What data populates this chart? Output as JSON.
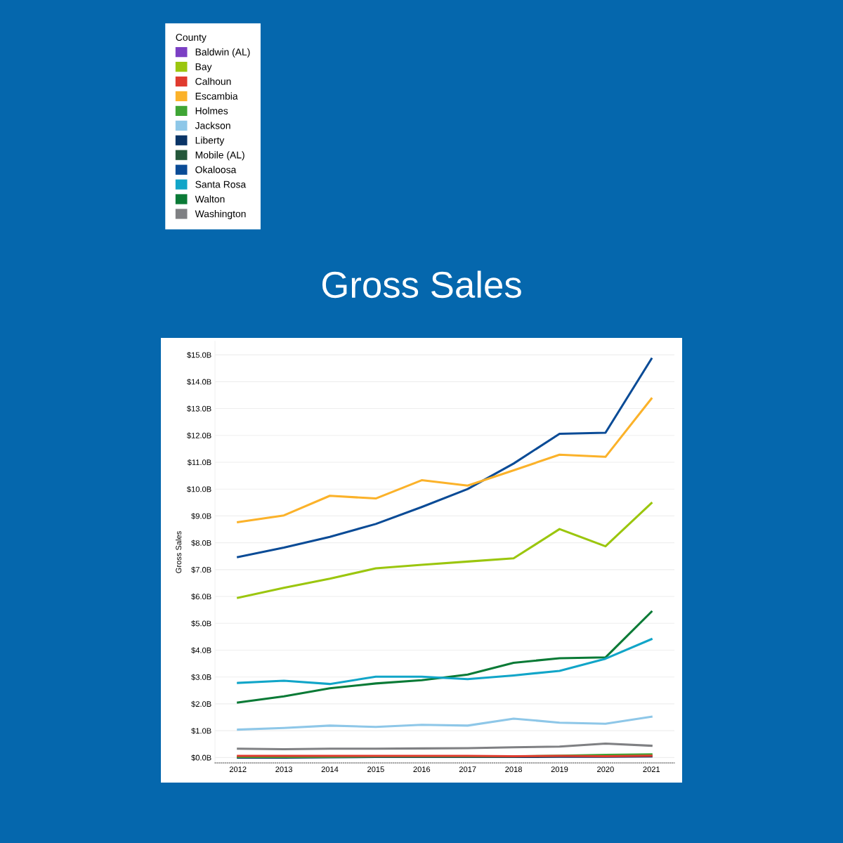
{
  "chart_data": {
    "type": "line",
    "title": "Gross Sales",
    "ylabel": "Gross Sales",
    "legend_title": "County",
    "legend": "top left",
    "grid": "y",
    "line_style": "solid",
    "marker": "none",
    "categories": [
      "2012",
      "2013",
      "2014",
      "2015",
      "2016",
      "2017",
      "2018",
      "2019",
      "2020",
      "2021"
    ],
    "ylim": [
      -0.2,
      15.5
    ],
    "yticks": [
      {
        "value": 0,
        "label": "$0.0B"
      },
      {
        "value": 1,
        "label": "$1.0B"
      },
      {
        "value": 2,
        "label": "$2.0B"
      },
      {
        "value": 3,
        "label": "$3.0B"
      },
      {
        "value": 4,
        "label": "$4.0B"
      },
      {
        "value": 5,
        "label": "$5.0B"
      },
      {
        "value": 6,
        "label": "$6.0B"
      },
      {
        "value": 7,
        "label": "$7.0B"
      },
      {
        "value": 8,
        "label": "$8.0B"
      },
      {
        "value": 9,
        "label": "$9.0B"
      },
      {
        "value": 10,
        "label": "$10.0B"
      },
      {
        "value": 11,
        "label": "$11.0B"
      },
      {
        "value": 12,
        "label": "$12.0B"
      },
      {
        "value": 13,
        "label": "$13.0B"
      },
      {
        "value": 14,
        "label": "$14.0B"
      },
      {
        "value": 15,
        "label": "$15.0B"
      }
    ],
    "series": [
      {
        "name": "Baldwin (AL)",
        "color": "#7b3fc4",
        "values": [
          null,
          null,
          null,
          null,
          null,
          null,
          null,
          null,
          null,
          null
        ]
      },
      {
        "name": "Bay",
        "color": "#9bc60e",
        "values": [
          5.95,
          6.32,
          6.66,
          7.05,
          7.18,
          7.3,
          7.42,
          8.51,
          7.87,
          9.48
        ]
      },
      {
        "name": "Calhoun",
        "color": "#e03a2e",
        "values": [
          0.06,
          0.06,
          0.06,
          0.06,
          0.06,
          0.06,
          0.05,
          0.06,
          0.05,
          0.07
        ]
      },
      {
        "name": "Escambia",
        "color": "#fbb22a",
        "values": [
          8.77,
          9.02,
          9.75,
          9.65,
          10.33,
          10.13,
          10.7,
          11.28,
          11.2,
          13.37
        ]
      },
      {
        "name": "Holmes",
        "color": "#3fa535",
        "values": [
          0.02,
          0.02,
          0.03,
          0.04,
          0.04,
          0.04,
          0.04,
          0.07,
          0.1,
          0.12
        ]
      },
      {
        "name": "Jackson",
        "color": "#8ec7e8",
        "values": [
          1.04,
          1.1,
          1.19,
          1.14,
          1.22,
          1.19,
          1.45,
          1.3,
          1.26,
          1.52
        ]
      },
      {
        "name": "Liberty",
        "color": "#0a3466",
        "values": [
          0.0,
          0.0,
          0.01,
          0.02,
          0.02,
          0.02,
          0.02,
          0.03,
          0.03,
          0.04
        ]
      },
      {
        "name": "Mobile (AL)",
        "color": "#24573a",
        "values": [
          null,
          null,
          null,
          null,
          null,
          null,
          null,
          null,
          null,
          null
        ]
      },
      {
        "name": "Okaloosa",
        "color": "#0a4b96",
        "values": [
          7.47,
          7.82,
          8.22,
          8.7,
          9.33,
          10.0,
          10.95,
          12.06,
          12.1,
          14.85
        ]
      },
      {
        "name": "Santa Rosa",
        "color": "#11a5c8",
        "values": [
          2.78,
          2.86,
          2.74,
          3.01,
          3.01,
          2.92,
          3.06,
          3.23,
          3.68,
          4.41
        ]
      },
      {
        "name": "Walton",
        "color": "#0a7a36",
        "values": [
          2.05,
          2.28,
          2.58,
          2.76,
          2.88,
          3.09,
          3.53,
          3.7,
          3.73,
          5.43
        ]
      },
      {
        "name": "Washington",
        "color": "#7f8083",
        "values": [
          0.33,
          0.31,
          0.33,
          0.33,
          0.34,
          0.35,
          0.38,
          0.41,
          0.52,
          0.44
        ]
      }
    ]
  }
}
